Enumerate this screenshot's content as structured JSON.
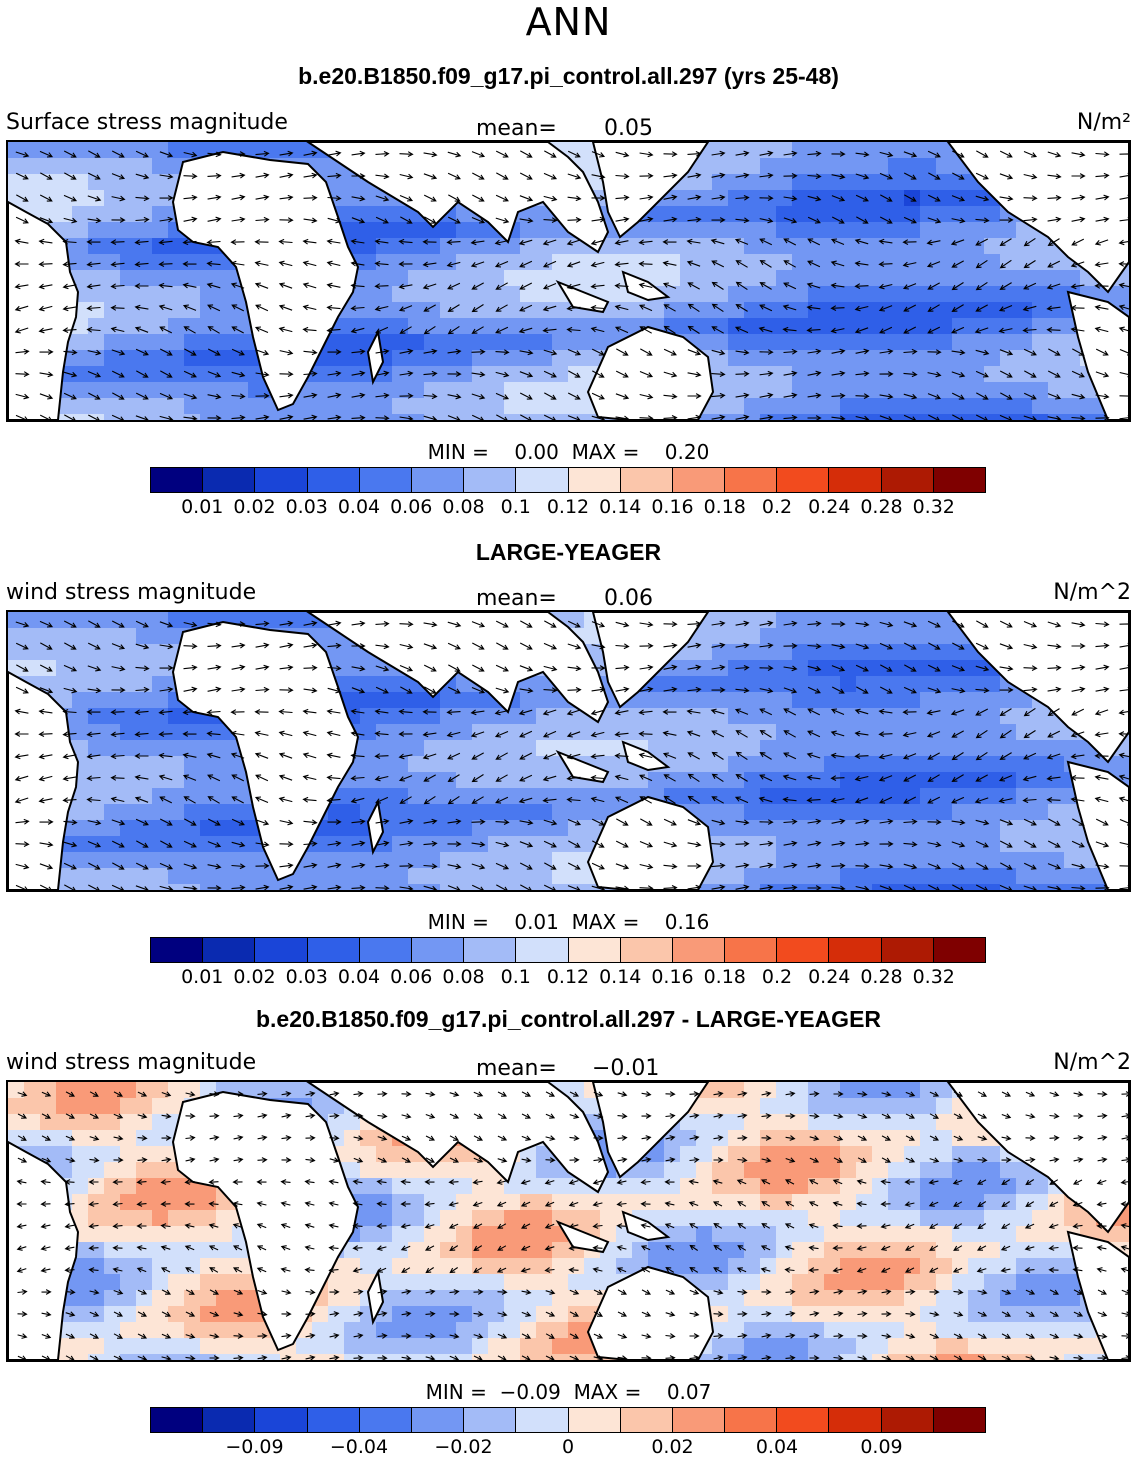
{
  "title": "ANN",
  "panels": [
    {
      "title": "b.e20.B1850.f09_g17.pi_control.all.297 (yrs 25-48)",
      "left_label": "Surface stress magnitude",
      "mean_label": "mean=",
      "mean_value": "0.05",
      "units": "N/m²",
      "min_label": "MIN =",
      "min_value": "0.00",
      "max_label": "MAX =",
      "max_value": "0.20",
      "field": "model",
      "colorbar": [
        "#00007f",
        "#0a2ab0",
        "#1a45d8",
        "#2f5fe8",
        "#4a78ef",
        "#7397f3",
        "#a3bbf7",
        "#d2e0fb",
        "#fde5d6",
        "#fbc6ab",
        "#f99a78",
        "#f77449",
        "#f24b1e",
        "#d52d09",
        "#ad1a03",
        "#7f0000"
      ],
      "ticks": [
        "0.01",
        "0.02",
        "0.03",
        "0.04",
        "0.06",
        "0.08",
        "0.1",
        "0.12",
        "0.14",
        "0.16",
        "0.18",
        "0.2",
        "0.24",
        "0.28",
        "0.32"
      ]
    },
    {
      "title": "LARGE-YEAGER",
      "left_label": "wind stress magnitude",
      "mean_label": "mean=",
      "mean_value": "0.06",
      "units": "N/m^2",
      "min_label": "MIN =",
      "min_value": "0.01",
      "max_label": "MAX =",
      "max_value": "0.16",
      "field": "obs",
      "colorbar": [
        "#00007f",
        "#0a2ab0",
        "#1a45d8",
        "#2f5fe8",
        "#4a78ef",
        "#7397f3",
        "#a3bbf7",
        "#d2e0fb",
        "#fde5d6",
        "#fbc6ab",
        "#f99a78",
        "#f77449",
        "#f24b1e",
        "#d52d09",
        "#ad1a03",
        "#7f0000"
      ],
      "ticks": [
        "0.01",
        "0.02",
        "0.03",
        "0.04",
        "0.06",
        "0.08",
        "0.1",
        "0.12",
        "0.14",
        "0.16",
        "0.18",
        "0.2",
        "0.24",
        "0.28",
        "0.32"
      ]
    },
    {
      "title": "b.e20.B1850.f09_g17.pi_control.all.297 - LARGE-YEAGER",
      "left_label": "wind stress magnitude",
      "mean_label": "mean=",
      "mean_value": "−0.01",
      "units": "N/m^2",
      "min_label": "MIN =",
      "min_value": "−0.09",
      "max_label": "MAX =",
      "max_value": "0.07",
      "field": "diff",
      "colorbar": [
        "#00007f",
        "#0a2ab0",
        "#1a45d8",
        "#2f5fe8",
        "#4a78ef",
        "#7397f3",
        "#a3bbf7",
        "#d2e0fb",
        "#fde5d6",
        "#fbc6ab",
        "#f99a78",
        "#f77449",
        "#f24b1e",
        "#d52d09",
        "#ad1a03",
        "#7f0000"
      ],
      "ticks": [
        "",
        "−0.09",
        "",
        "−0.04",
        "",
        "−0.02",
        "",
        "0",
        "",
        "0.02",
        "",
        "0.04",
        "",
        "0.09",
        ""
      ]
    }
  ]
}
